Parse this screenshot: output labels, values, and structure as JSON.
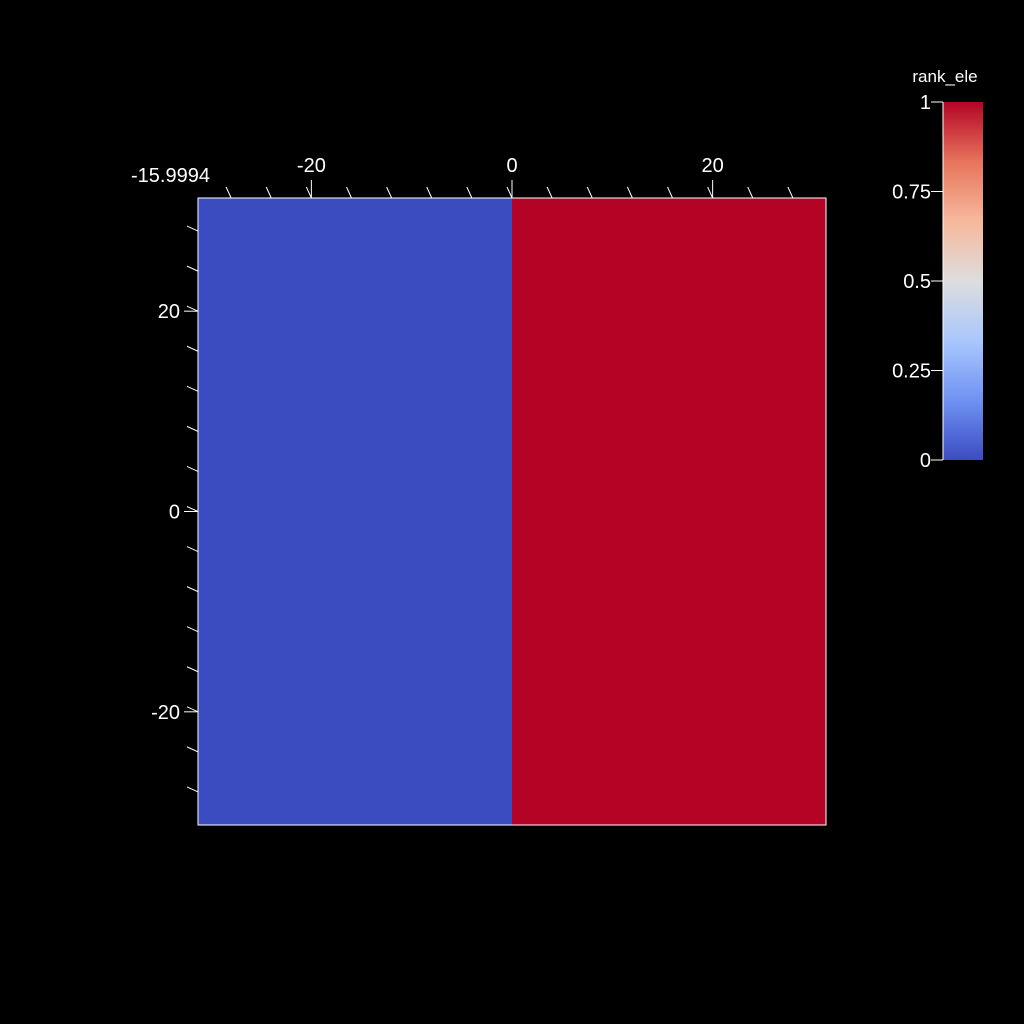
{
  "chart_data": {
    "type": "heatmap",
    "title": "",
    "xlabel": "",
    "ylabel": "",
    "xlim": [
      -31.3,
      31.3
    ],
    "ylim": [
      -31.3,
      31.3
    ],
    "corner_label": "-15.9994",
    "x_ticks": [
      {
        "value": -20,
        "label": "-20"
      },
      {
        "value": 0,
        "label": "0"
      },
      {
        "value": 20,
        "label": "20"
      }
    ],
    "y_ticks": [
      {
        "value": 20,
        "label": "20"
      },
      {
        "value": 0,
        "label": "0"
      },
      {
        "value": -20,
        "label": "-20"
      }
    ],
    "regions": [
      {
        "x_range": [
          -31.3,
          0
        ],
        "y_range": [
          -31.3,
          31.3
        ],
        "value": 0,
        "color": "#3b4cc0"
      },
      {
        "x_range": [
          0,
          31.3
        ],
        "y_range": [
          -31.3,
          31.3
        ],
        "value": 1,
        "color": "#b40426"
      }
    ],
    "colorbar": {
      "title": "rank_ele",
      "range": [
        0,
        1
      ],
      "colormap": "coolwarm",
      "stops": [
        "#3b4cc0",
        "#6f92f3",
        "#aac7fd",
        "#dddddd",
        "#f7b89c",
        "#e7745b",
        "#b40426"
      ],
      "ticks": [
        {
          "value": 1,
          "label": "1"
        },
        {
          "value": 0.75,
          "label": "0.75"
        },
        {
          "value": 0.5,
          "label": "0.5"
        },
        {
          "value": 0.25,
          "label": "0.25"
        },
        {
          "value": 0,
          "label": "0"
        }
      ]
    }
  }
}
